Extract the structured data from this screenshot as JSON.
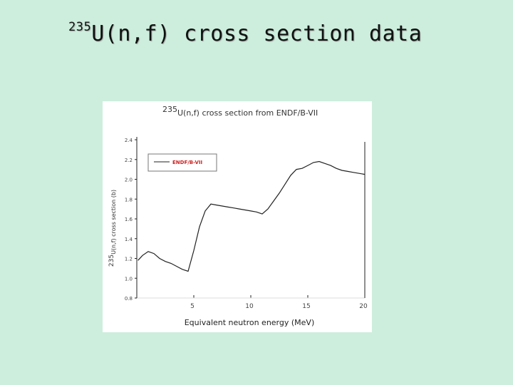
{
  "slide": {
    "title_sup": "235",
    "title_main": "U(n,f) cross section data"
  },
  "chart_data": {
    "type": "line",
    "title_sup": "235",
    "title": "U(n,f) cross section from ENDF/B-VII",
    "xlabel": "Equivalent neutron energy (MeV)",
    "ylabel_sup": "235",
    "ylabel": "U(n,f) cross section (b)",
    "xlim": [
      0,
      20
    ],
    "ylim": [
      0.8,
      2.4
    ],
    "x_ticks": [
      5,
      10,
      15,
      20
    ],
    "x_tick_labels": [
      "5",
      "10",
      "15",
      "20"
    ],
    "y_ticks": [
      0.8,
      1.0,
      1.2,
      1.4,
      1.6,
      1.8,
      2.0,
      2.2,
      2.4
    ],
    "y_tick_labels": [
      "0.8",
      "1.0",
      "1.2",
      "1.4",
      "1.6",
      "1.8",
      "2.0",
      "2.2",
      "2.4"
    ],
    "grid": false,
    "legend": {
      "placement": "top-left",
      "entries": [
        "ENDF/B-VII"
      ]
    },
    "series": [
      {
        "name": "ENDF/B-VII",
        "color": "#222222",
        "legend_text_color": "#cc2222",
        "x": [
          0.1,
          0.5,
          1.0,
          1.5,
          2.0,
          2.5,
          3.0,
          3.5,
          4.0,
          4.5,
          5.0,
          5.5,
          6.0,
          6.5,
          7.0,
          7.5,
          8.0,
          8.5,
          9.0,
          9.5,
          10.0,
          10.5,
          11.0,
          11.5,
          12.0,
          12.5,
          13.0,
          13.5,
          14.0,
          14.5,
          15.0,
          15.5,
          16.0,
          16.5,
          17.0,
          17.5,
          18.0,
          18.5,
          19.0,
          19.5,
          20.0
        ],
        "y": [
          1.18,
          1.23,
          1.27,
          1.25,
          1.2,
          1.17,
          1.15,
          1.12,
          1.09,
          1.07,
          1.28,
          1.52,
          1.68,
          1.75,
          1.74,
          1.73,
          1.72,
          1.71,
          1.7,
          1.69,
          1.68,
          1.67,
          1.65,
          1.7,
          1.78,
          1.86,
          1.95,
          2.04,
          2.1,
          2.11,
          2.14,
          2.17,
          2.18,
          2.16,
          2.14,
          2.11,
          2.09,
          2.08,
          2.07,
          2.06,
          2.05
        ]
      }
    ]
  }
}
